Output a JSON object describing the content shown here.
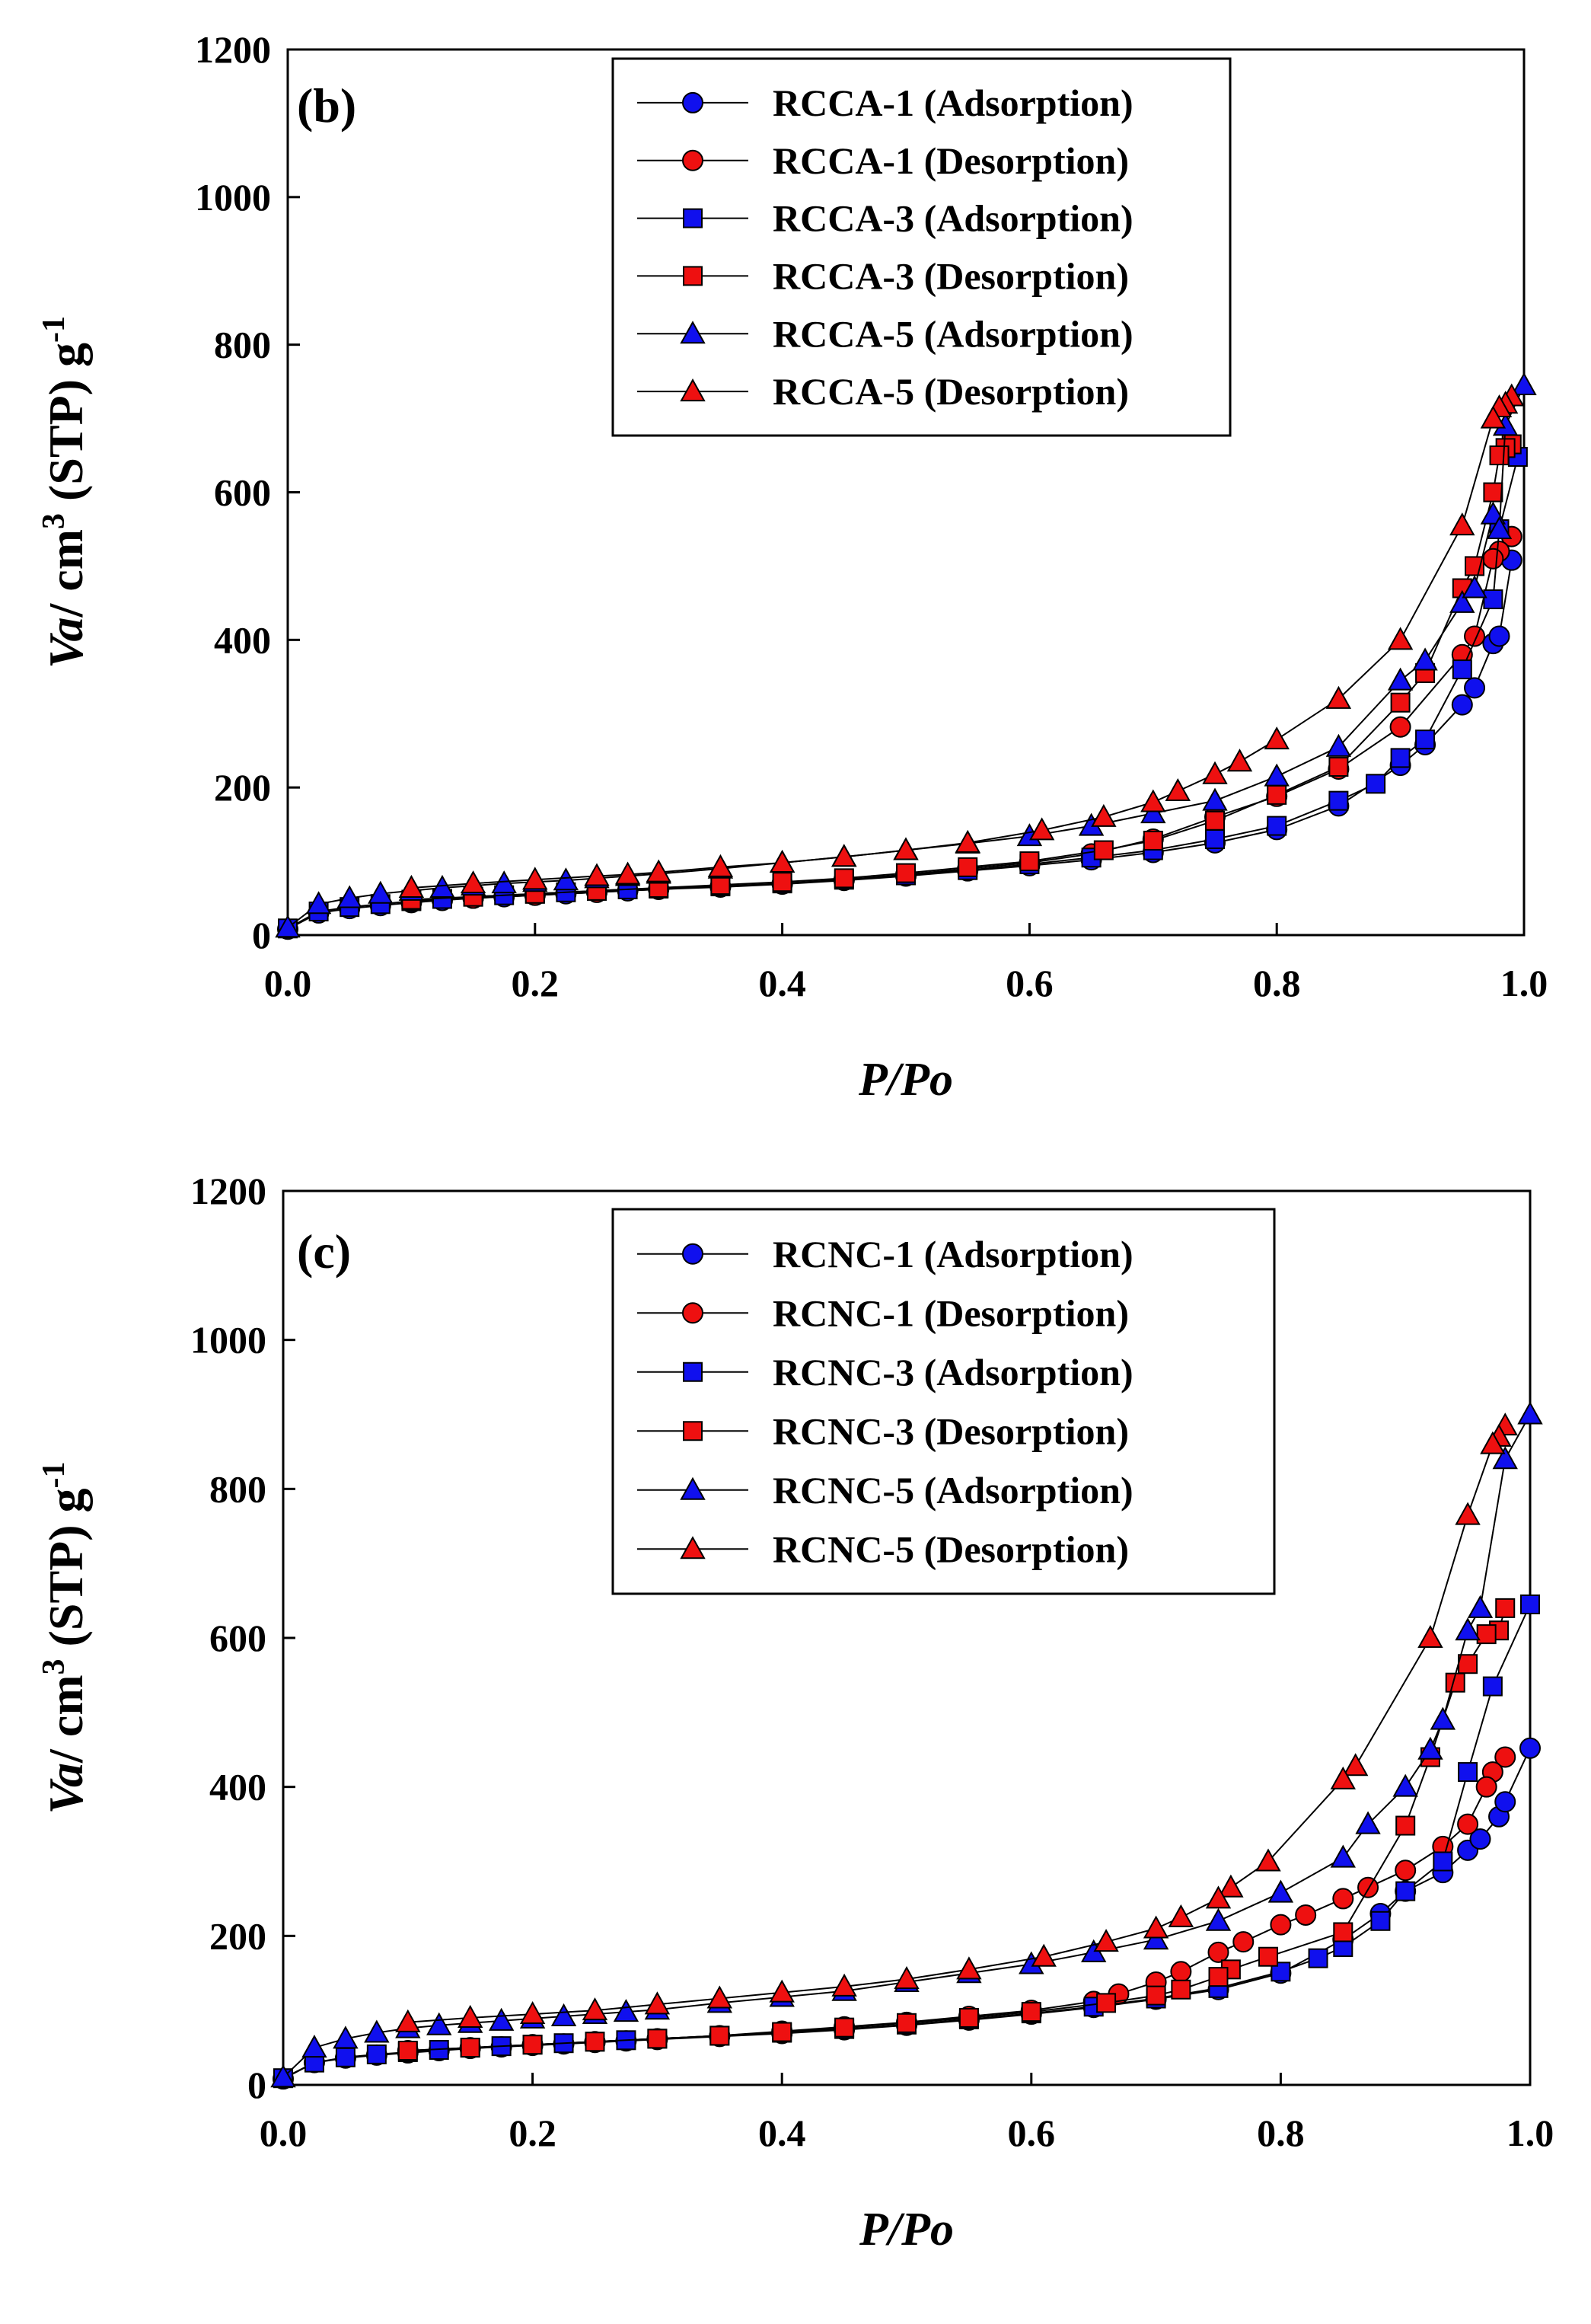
{
  "colors": {
    "adsorption": "#1010ee",
    "desorption": "#ee1010",
    "line": "#000000"
  },
  "chart_data": [
    {
      "type": "line",
      "panel_label": "(b)",
      "xlabel": "P/Po",
      "ylabel_prefix": "Va",
      "ylabel_main": "/ cm",
      "ylabel_sup": "3",
      "ylabel_rest": " (STP) g",
      "ylabel_sup2": "-1",
      "xlim": [
        0,
        1.0
      ],
      "ylim": [
        0,
        1200
      ],
      "xticks": [
        "0.0",
        "0.2",
        "0.4",
        "0.6",
        "0.8",
        "1.0"
      ],
      "yticks": [
        "0",
        "200",
        "400",
        "600",
        "800",
        "1000",
        "1200"
      ],
      "legend_position": "top-right",
      "series": [
        {
          "name": "RCCA-1 (Adsorption)",
          "marker": "circle",
          "color": "adsorption",
          "x": [
            0.0,
            0.025,
            0.05,
            0.075,
            0.1,
            0.125,
            0.15,
            0.175,
            0.2,
            0.225,
            0.25,
            0.275,
            0.3,
            0.35,
            0.4,
            0.45,
            0.5,
            0.55,
            0.6,
            0.65,
            0.7,
            0.75,
            0.8,
            0.85,
            0.9,
            0.92,
            0.95,
            0.96,
            0.975,
            0.98,
            0.99
          ],
          "y": [
            8,
            30,
            36,
            40,
            44,
            47,
            50,
            52,
            54,
            56,
            58,
            60,
            62,
            65,
            69,
            74,
            80,
            87,
            94,
            102,
            112,
            125,
            143,
            175,
            230,
            258,
            312,
            335,
            395,
            405,
            508
          ]
        },
        {
          "name": "RCCA-1 (Desorption)",
          "marker": "circle",
          "color": "desorption",
          "x": [
            0.99,
            0.98,
            0.975,
            0.96,
            0.95,
            0.9,
            0.85,
            0.8,
            0.75,
            0.7,
            0.65,
            0.6,
            0.55,
            0.5,
            0.45,
            0.4,
            0.35,
            0.3,
            0.25,
            0.2,
            0.15,
            0.1
          ],
          "y": [
            540,
            520,
            510,
            405,
            380,
            282,
            225,
            188,
            160,
            130,
            110,
            98,
            90,
            82,
            75,
            70,
            66,
            62,
            58,
            54,
            50,
            46
          ]
        },
        {
          "name": "RCCA-3 (Adsorption)",
          "marker": "square",
          "color": "adsorption",
          "x": [
            0.0,
            0.025,
            0.05,
            0.075,
            0.1,
            0.125,
            0.15,
            0.175,
            0.2,
            0.225,
            0.25,
            0.275,
            0.3,
            0.35,
            0.4,
            0.45,
            0.5,
            0.55,
            0.6,
            0.65,
            0.7,
            0.75,
            0.8,
            0.85,
            0.88,
            0.9,
            0.92,
            0.95,
            0.975,
            0.98,
            0.995
          ],
          "y": [
            9,
            32,
            38,
            42,
            46,
            49,
            52,
            54,
            56,
            58,
            60,
            62,
            63,
            66,
            70,
            75,
            81,
            88,
            96,
            105,
            115,
            130,
            148,
            182,
            205,
            240,
            265,
            360,
            455,
            550,
            648
          ]
        },
        {
          "name": "RCCA-3 (Desorption)",
          "marker": "square",
          "color": "desorption",
          "x": [
            0.99,
            0.985,
            0.98,
            0.975,
            0.96,
            0.95,
            0.92,
            0.9,
            0.85,
            0.8,
            0.75,
            0.7,
            0.66,
            0.6,
            0.55,
            0.5,
            0.45,
            0.4,
            0.35,
            0.3,
            0.25,
            0.2,
            0.15,
            0.1
          ],
          "y": [
            665,
            660,
            650,
            600,
            500,
            470,
            355,
            315,
            228,
            190,
            155,
            128,
            115,
            100,
            92,
            84,
            77,
            72,
            68,
            64,
            60,
            56,
            52,
            48
          ]
        },
        {
          "name": "RCCA-5 (Adsorption)",
          "marker": "triangle",
          "color": "adsorption",
          "x": [
            0.0,
            0.025,
            0.05,
            0.075,
            0.1,
            0.125,
            0.15,
            0.175,
            0.2,
            0.225,
            0.25,
            0.275,
            0.3,
            0.35,
            0.4,
            0.45,
            0.5,
            0.55,
            0.6,
            0.65,
            0.7,
            0.75,
            0.8,
            0.85,
            0.9,
            0.92,
            0.95,
            0.96,
            0.975,
            0.98,
            0.985,
            1.0
          ],
          "y": [
            10,
            42,
            50,
            56,
            60,
            64,
            67,
            70,
            72,
            74,
            77,
            80,
            83,
            90,
            98,
            106,
            115,
            124,
            134,
            148,
            165,
            182,
            215,
            255,
            345,
            372,
            450,
            470,
            570,
            550,
            690,
            745
          ]
        },
        {
          "name": "RCCA-5 (Desorption)",
          "marker": "triangle",
          "color": "desorption",
          "x": [
            0.99,
            0.985,
            0.98,
            0.975,
            0.95,
            0.9,
            0.85,
            0.8,
            0.77,
            0.75,
            0.72,
            0.7,
            0.66,
            0.61,
            0.55,
            0.5,
            0.45,
            0.4,
            0.35,
            0.3,
            0.275,
            0.25,
            0.2,
            0.15,
            0.1
          ],
          "y": [
            730,
            720,
            715,
            700,
            555,
            400,
            320,
            265,
            235,
            218,
            195,
            180,
            160,
            142,
            125,
            115,
            106,
            98,
            92,
            85,
            82,
            80,
            75,
            70,
            64
          ]
        }
      ]
    },
    {
      "type": "line",
      "panel_label": "(c)",
      "xlabel": "P/Po",
      "ylabel_prefix": "Va",
      "ylabel_main": "/ cm",
      "ylabel_sup": "3",
      "ylabel_rest": " (STP) g",
      "ylabel_sup2": "-1",
      "xlim": [
        0,
        1.0
      ],
      "ylim": [
        0,
        1200
      ],
      "xticks": [
        "0.0",
        "0.2",
        "0.4",
        "0.6",
        "0.8",
        "1.0"
      ],
      "yticks": [
        "0",
        "200",
        "400",
        "600",
        "800",
        "1000",
        "1200"
      ],
      "legend_position": "top-right",
      "series": [
        {
          "name": "RCNC-1 (Adsorption)",
          "marker": "circle",
          "color": "adsorption",
          "x": [
            0.0,
            0.025,
            0.05,
            0.075,
            0.1,
            0.125,
            0.15,
            0.175,
            0.2,
            0.225,
            0.25,
            0.275,
            0.3,
            0.35,
            0.4,
            0.45,
            0.5,
            0.55,
            0.6,
            0.65,
            0.7,
            0.75,
            0.8,
            0.85,
            0.88,
            0.9,
            0.93,
            0.95,
            0.96,
            0.975,
            0.98,
            1.0
          ],
          "y": [
            8,
            30,
            36,
            40,
            43,
            46,
            49,
            51,
            53,
            55,
            57,
            59,
            61,
            65,
            69,
            74,
            80,
            87,
            95,
            104,
            115,
            128,
            150,
            195,
            230,
            260,
            285,
            315,
            330,
            360,
            380,
            452
          ]
        },
        {
          "name": "RCNC-1 (Desorption)",
          "marker": "circle",
          "color": "desorption",
          "x": [
            0.98,
            0.97,
            0.965,
            0.95,
            0.93,
            0.9,
            0.87,
            0.85,
            0.82,
            0.8,
            0.77,
            0.75,
            0.72,
            0.7,
            0.67,
            0.65,
            0.6,
            0.55,
            0.5,
            0.45,
            0.4,
            0.35,
            0.3,
            0.25,
            0.2,
            0.15,
            0.1
          ],
          "y": [
            440,
            420,
            400,
            350,
            320,
            288,
            265,
            250,
            228,
            215,
            192,
            178,
            152,
            138,
            122,
            112,
            100,
            92,
            84,
            78,
            72,
            66,
            62,
            58,
            54,
            50,
            46
          ]
        },
        {
          "name": "RCNC-3 (Adsorption)",
          "marker": "square",
          "color": "adsorption",
          "x": [
            0.0,
            0.025,
            0.05,
            0.075,
            0.1,
            0.125,
            0.15,
            0.175,
            0.2,
            0.225,
            0.25,
            0.275,
            0.3,
            0.35,
            0.4,
            0.45,
            0.5,
            0.55,
            0.6,
            0.65,
            0.7,
            0.75,
            0.8,
            0.83,
            0.85,
            0.88,
            0.9,
            0.93,
            0.95,
            0.97,
            1.0
          ],
          "y": [
            9,
            30,
            37,
            41,
            44,
            47,
            50,
            52,
            54,
            56,
            58,
            60,
            62,
            66,
            70,
            75,
            81,
            88,
            96,
            105,
            116,
            130,
            152,
            170,
            185,
            220,
            260,
            300,
            420,
            535,
            645
          ]
        },
        {
          "name": "RCNC-3 (Desorption)",
          "marker": "square",
          "color": "desorption",
          "x": [
            0.98,
            0.975,
            0.965,
            0.95,
            0.94,
            0.92,
            0.9,
            0.85,
            0.79,
            0.76,
            0.75,
            0.72,
            0.7,
            0.66,
            0.6,
            0.55,
            0.5,
            0.45,
            0.4,
            0.35,
            0.3,
            0.25,
            0.2,
            0.15,
            0.1
          ],
          "y": [
            640,
            610,
            605,
            565,
            540,
            440,
            348,
            205,
            172,
            155,
            145,
            128,
            120,
            110,
            98,
            90,
            83,
            77,
            71,
            66,
            62,
            58,
            54,
            50,
            46
          ]
        },
        {
          "name": "RCNC-5 (Adsorption)",
          "marker": "triangle",
          "color": "adsorption",
          "x": [
            0.0,
            0.025,
            0.05,
            0.075,
            0.1,
            0.125,
            0.15,
            0.175,
            0.2,
            0.225,
            0.25,
            0.275,
            0.3,
            0.35,
            0.4,
            0.45,
            0.5,
            0.55,
            0.6,
            0.65,
            0.7,
            0.75,
            0.8,
            0.85,
            0.87,
            0.9,
            0.92,
            0.93,
            0.95,
            0.96,
            0.98,
            1.0
          ],
          "y": [
            10,
            50,
            62,
            70,
            76,
            80,
            83,
            86,
            89,
            92,
            95,
            98,
            101,
            110,
            118,
            126,
            138,
            150,
            162,
            178,
            195,
            220,
            258,
            305,
            350,
            400,
            450,
            490,
            610,
            640,
            840,
            900
          ]
        },
        {
          "name": "RCNC-5 (Desorption)",
          "marker": "triangle",
          "color": "desorption",
          "x": [
            0.98,
            0.975,
            0.97,
            0.95,
            0.92,
            0.86,
            0.85,
            0.79,
            0.76,
            0.75,
            0.72,
            0.7,
            0.66,
            0.61,
            0.55,
            0.5,
            0.45,
            0.4,
            0.35,
            0.3,
            0.25,
            0.2,
            0.15,
            0.1
          ],
          "y": [
            885,
            870,
            860,
            765,
            600,
            428,
            410,
            300,
            265,
            250,
            225,
            210,
            192,
            172,
            155,
            142,
            132,
            124,
            116,
            108,
            100,
            95,
            90,
            84
          ]
        }
      ]
    }
  ]
}
